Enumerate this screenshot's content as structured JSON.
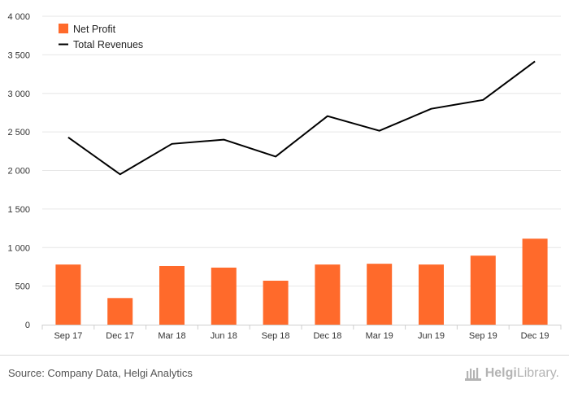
{
  "chart_data": {
    "type": "bar",
    "categories": [
      "Sep 17",
      "Dec 17",
      "Mar 18",
      "Jun 18",
      "Sep 18",
      "Dec 18",
      "Mar 19",
      "Jun 19",
      "Sep 19",
      "Dec 19"
    ],
    "series": [
      {
        "name": "Net Profit",
        "type": "bar",
        "color": "#ff6a2b",
        "values": [
          780,
          345,
          760,
          740,
          570,
          780,
          790,
          780,
          895,
          1115
        ]
      },
      {
        "name": "Total Revenues",
        "type": "line",
        "color": "#000000",
        "values": [
          2430,
          1950,
          2345,
          2400,
          2180,
          2705,
          2515,
          2800,
          2915,
          3415
        ]
      }
    ],
    "y_ticks": [
      "0",
      "500",
      "1 000",
      "1 500",
      "2 000",
      "2 500",
      "3 000",
      "3 500",
      "4 000"
    ],
    "ylim": [
      0,
      4000
    ],
    "grid": true,
    "legend_position": "top-left"
  },
  "footer": {
    "source": "Source: Company Data, Helgi Analytics",
    "brand_part1": "Helgi",
    "brand_part2": "Library."
  }
}
